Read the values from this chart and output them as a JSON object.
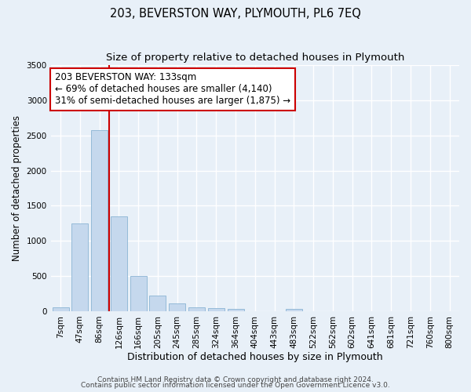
{
  "title": "203, BEVERSTON WAY, PLYMOUTH, PL6 7EQ",
  "subtitle": "Size of property relative to detached houses in Plymouth",
  "xlabel": "Distribution of detached houses by size in Plymouth",
  "ylabel": "Number of detached properties",
  "bar_labels": [
    "7sqm",
    "47sqm",
    "86sqm",
    "126sqm",
    "166sqm",
    "205sqm",
    "245sqm",
    "285sqm",
    "324sqm",
    "364sqm",
    "404sqm",
    "443sqm",
    "483sqm",
    "522sqm",
    "562sqm",
    "602sqm",
    "641sqm",
    "681sqm",
    "721sqm",
    "760sqm",
    "800sqm"
  ],
  "bar_values": [
    50,
    1250,
    2580,
    1350,
    500,
    225,
    110,
    50,
    40,
    30,
    0,
    0,
    30,
    0,
    0,
    0,
    0,
    0,
    0,
    0,
    0
  ],
  "bar_color": "#c5d8ed",
  "bar_edge_color": "#8ab4d4",
  "vline_x": 2.5,
  "vline_color": "#cc0000",
  "annotation_text": "203 BEVERSTON WAY: 133sqm\n← 69% of detached houses are smaller (4,140)\n31% of semi-detached houses are larger (1,875) →",
  "annotation_box_color": "#ffffff",
  "annotation_box_edgecolor": "#cc0000",
  "annotation_fontsize": 8.5,
  "ylim": [
    0,
    3500
  ],
  "yticks": [
    0,
    500,
    1000,
    1500,
    2000,
    2500,
    3000,
    3500
  ],
  "bg_color": "#e8f0f8",
  "plot_bg_color": "#e8f0f8",
  "grid_color": "#ffffff",
  "footer_line1": "Contains HM Land Registry data © Crown copyright and database right 2024.",
  "footer_line2": "Contains public sector information licensed under the Open Government Licence v3.0.",
  "title_fontsize": 10.5,
  "subtitle_fontsize": 9.5,
  "xlabel_fontsize": 9,
  "ylabel_fontsize": 8.5,
  "tick_fontsize": 7.5,
  "footer_fontsize": 6.5
}
